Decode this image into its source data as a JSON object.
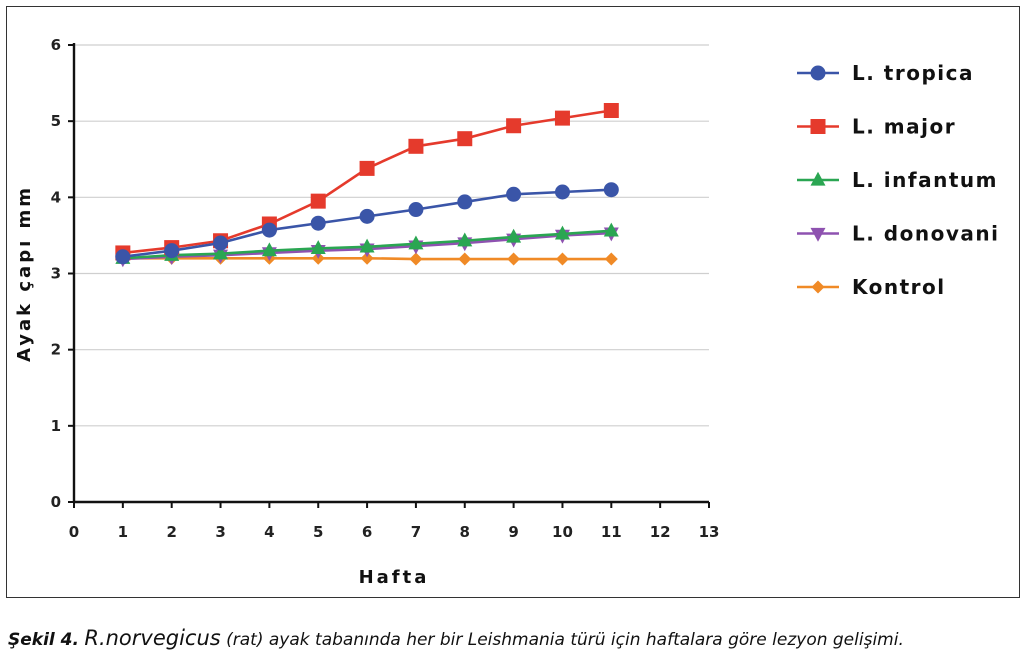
{
  "chart_data": {
    "type": "line",
    "xlabel": "Hafta",
    "ylabel": "Ayak çapı mm",
    "xlim": [
      0,
      13
    ],
    "ylim": [
      0,
      6
    ],
    "xticks": [
      "0",
      "1",
      "2",
      "3",
      "4",
      "5",
      "6",
      "7",
      "8",
      "9",
      "10",
      "11",
      "12",
      "13"
    ],
    "yticks": [
      "0",
      "1",
      "2",
      "3",
      "4",
      "5",
      "6"
    ],
    "grid": "horizontal",
    "legend": "right",
    "x": [
      1,
      2,
      3,
      4,
      5,
      6,
      7,
      8,
      9,
      10,
      11
    ],
    "series": [
      {
        "name": "L. tropica",
        "color": "#3a55a8",
        "marker": "circle",
        "values": [
          3.22,
          3.3,
          3.4,
          3.57,
          3.66,
          3.75,
          3.84,
          3.94,
          4.04,
          4.07,
          4.1
        ]
      },
      {
        "name": "L. major",
        "color": "#e53a2c",
        "marker": "square",
        "values": [
          3.27,
          3.34,
          3.43,
          3.65,
          3.95,
          4.38,
          4.67,
          4.77,
          4.94,
          5.04,
          5.14
        ]
      },
      {
        "name": "L. infantum",
        "color": "#2aa652",
        "marker": "triangle-up",
        "values": [
          3.2,
          3.24,
          3.26,
          3.3,
          3.33,
          3.35,
          3.39,
          3.43,
          3.48,
          3.52,
          3.56
        ]
      },
      {
        "name": "L. donovani",
        "color": "#8e52b0",
        "marker": "triangle-down",
        "values": [
          3.19,
          3.22,
          3.24,
          3.27,
          3.3,
          3.32,
          3.36,
          3.4,
          3.45,
          3.5,
          3.53
        ]
      },
      {
        "name": "Kontrol",
        "color": "#f08a26",
        "marker": "diamond",
        "values": [
          3.2,
          3.2,
          3.2,
          3.2,
          3.2,
          3.2,
          3.19,
          3.19,
          3.19,
          3.19,
          3.19
        ]
      }
    ]
  },
  "caption": {
    "label": "Şekil 4.",
    "species": "R.norvegicus",
    "text": "(rat) ayak tabanında her bir Leishmania türü için haftalara göre lezyon gelişimi."
  }
}
